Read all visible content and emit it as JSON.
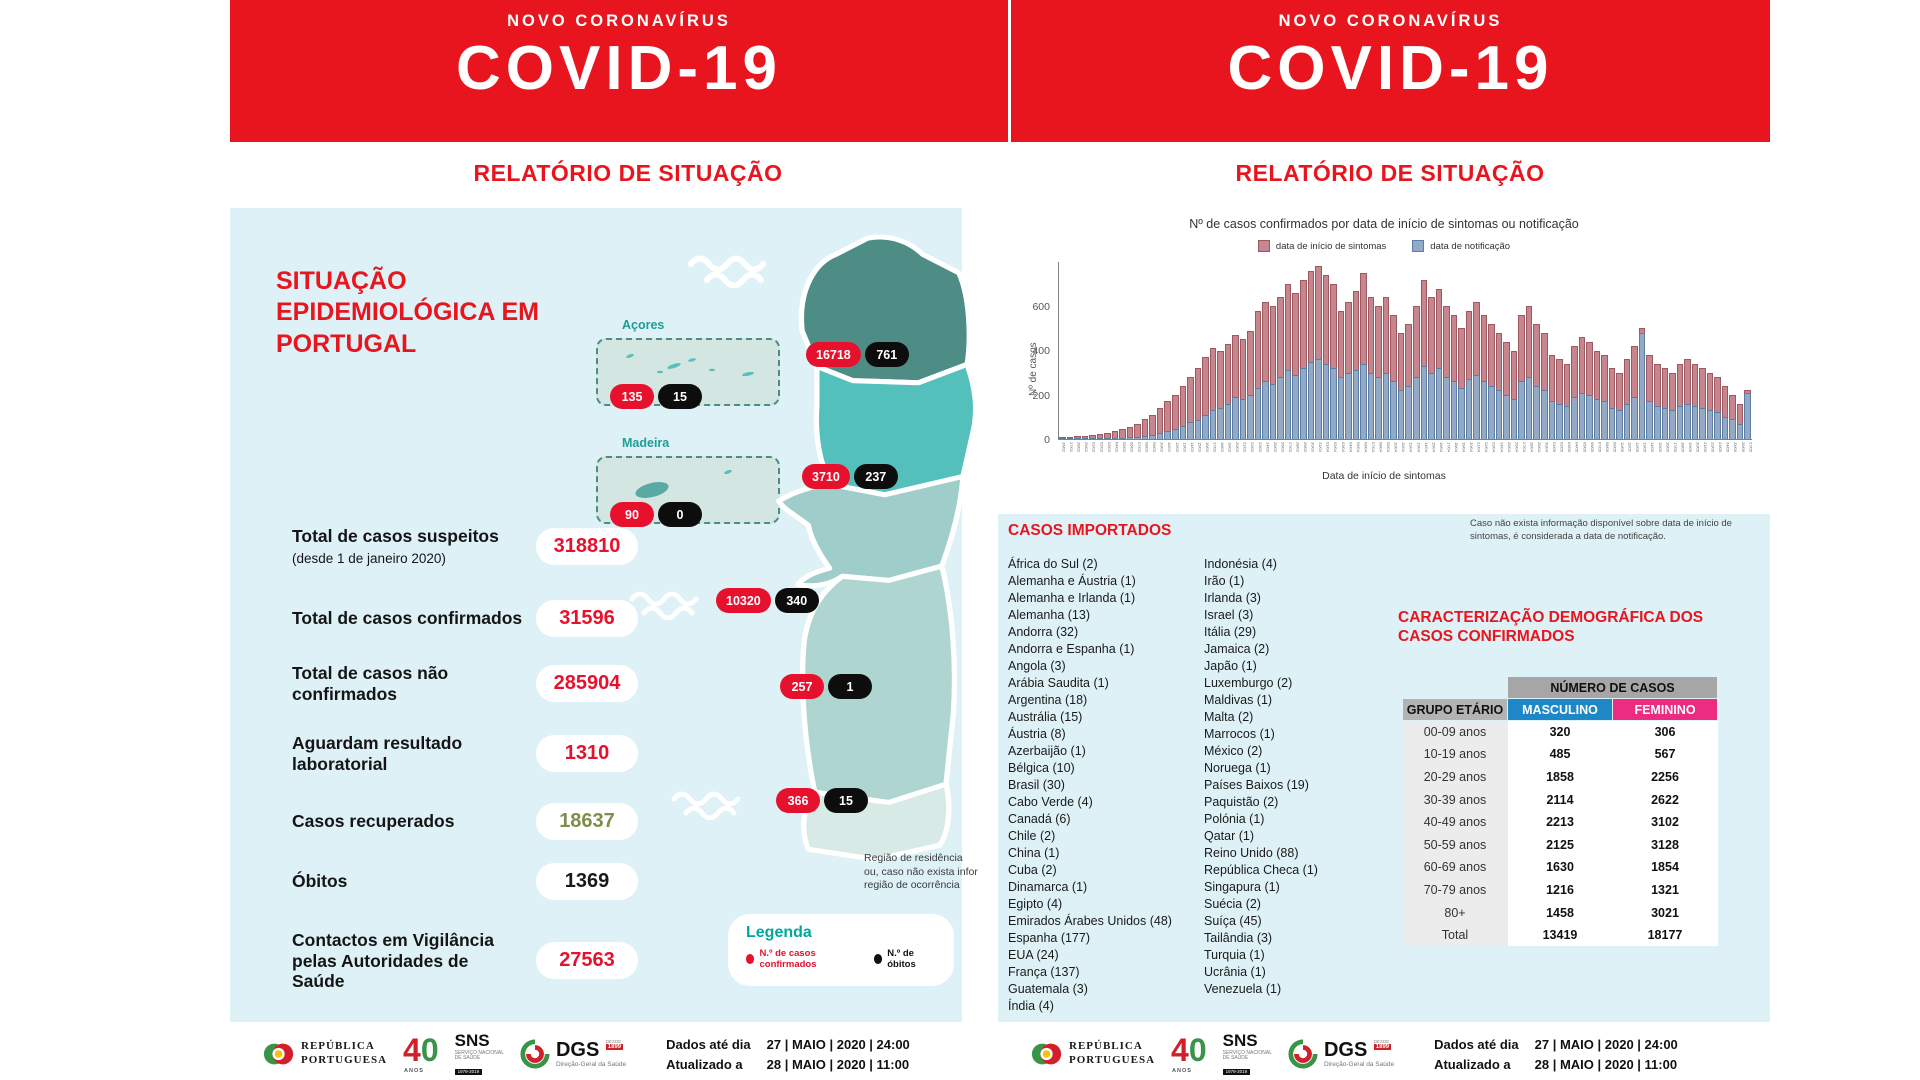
{
  "banner": {
    "kicker": "NOVO CORONAVÍRUS",
    "title": "COVID-19"
  },
  "report_heading": "RELATÓRIO DE SITUAÇÃO",
  "colors": {
    "accent_red": "#e8151e",
    "panel_blue": "#def1f7",
    "pill_red": "#e8112d",
    "pill_black": "#0d0d0d",
    "legend_teal": "#00a79d",
    "masculino_blue": "#1e87c8",
    "feminino_pink": "#ec2c80",
    "bar_sintomas": "#c9858d",
    "bar_notificacao": "#92a9c7",
    "map_norte": "#4e8d86",
    "map_centro": "#54c0bb",
    "map_lvt": "#9fcdc9",
    "map_alentejo": "#aed5d0",
    "map_algarve": "#d8eae6",
    "recovered_olive": "#7d8f4a"
  },
  "left": {
    "situation_title": "SITUAÇÃO EPIDEMIOLÓGICA EM PORTUGAL",
    "stats": [
      {
        "label": "Total de casos suspeitos",
        "suffix": "(desde 1 de janeiro 2020)",
        "value": "318810"
      },
      {
        "label": "Total de casos confirmados",
        "value": "31596"
      },
      {
        "label": "Total de casos não confirmados",
        "value": "285904"
      },
      {
        "label": "Aguardam resultado laboratorial",
        "value": "1310"
      },
      {
        "label": "Casos recuperados",
        "value": "18637"
      },
      {
        "label": "Óbitos",
        "value": "1369"
      },
      {
        "label": "Contactos em Vigilância pelas Autoridades de Saúde",
        "value": "27563"
      }
    ],
    "islands": [
      {
        "name": "Açores",
        "confirmed": "135",
        "deaths": "15"
      },
      {
        "name": "Madeira",
        "confirmed": "90",
        "deaths": "0"
      }
    ],
    "regions": {
      "norte": {
        "confirmed": "16718",
        "deaths": "761"
      },
      "centro": {
        "confirmed": "3710",
        "deaths": "237"
      },
      "lvt": {
        "confirmed": "10320",
        "deaths": "340"
      },
      "alentejo": {
        "confirmed": "257",
        "deaths": "1"
      },
      "algarve": {
        "confirmed": "366",
        "deaths": "15"
      }
    },
    "map_note": [
      "Região de residência",
      "ou, caso não exista infor",
      "região de ocorrência"
    ],
    "legend": {
      "title": "Legenda",
      "confirmed": "N.º de casos confirmados",
      "deaths": "N.º de óbitos"
    }
  },
  "right": {
    "imported": {
      "title": "CASOS IMPORTADOS",
      "col1": [
        "África do Sul (2)",
        "Alemanha e Áustria (1)",
        "Alemanha e Irlanda (1)",
        "Alemanha (13)",
        "Andorra (32)",
        "Andorra e Espanha (1)",
        "Angola (3)",
        "Arábia Saudita (1)",
        "Argentina (18)",
        "Austrália (15)",
        "Áustria (8)",
        "Azerbaijão (1)",
        "Bélgica (10)",
        "Brasil (30)",
        "Cabo Verde (4)",
        "Canadá (6)",
        "Chile (2)",
        "China (1)",
        "Cuba (2)",
        "Dinamarca (1)",
        "Egipto (4)",
        "Emirados Árabes Unidos (48)",
        "Espanha (177)",
        "EUA (24)",
        "França (137)",
        "Guatemala (3)",
        "Índia (4)"
      ],
      "col2": [
        "Indonésia (4)",
        "Irão (1)",
        "Irlanda (3)",
        "Israel (3)",
        "Itália (29)",
        "Jamaica (2)",
        "Japão (1)",
        "Luxemburgo (2)",
        "Maldivas (1)",
        "Malta (2)",
        "Marrocos (1)",
        "México (2)",
        "Noruega (1)",
        "Países Baixos (19)",
        "Paquistão (2)",
        "Polónia (1)",
        "Qatar (1)",
        "Reino Unido (88)",
        "República Checa (1)",
        "Singapura (1)",
        "Suécia (2)",
        "Suíça (45)",
        "Tailândia (3)",
        "Turquia (1)",
        "Ucrânia (1)",
        "Venezuela (1)"
      ]
    },
    "demographics": {
      "title": "CARACTERIZAÇÃO DEMOGRÁFICA DOS CASOS CONFIRMADOS",
      "header_group": "NÚMERO DE CASOS",
      "col_headers": [
        "GRUPO ETÁRIO",
        "MASCULINO",
        "FEMININO"
      ],
      "rows": [
        [
          "00-09 anos",
          "320",
          "306"
        ],
        [
          "10-19 anos",
          "485",
          "567"
        ],
        [
          "20-29 anos",
          "1858",
          "2256"
        ],
        [
          "30-39 anos",
          "2114",
          "2622"
        ],
        [
          "40-49 anos",
          "2213",
          "3102"
        ],
        [
          "50-59 anos",
          "2125",
          "3128"
        ],
        [
          "60-69 anos",
          "1630",
          "1854"
        ],
        [
          "70-79 anos",
          "1216",
          "1321"
        ],
        [
          "80+",
          "1458",
          "3021"
        ],
        [
          "Total",
          "13419",
          "18177"
        ]
      ]
    }
  },
  "chart_data": {
    "type": "bar",
    "title": "Nº de casos confirmados por data de início de sintomas ou notificação",
    "ylabel": "Nº de casos",
    "xlabel": "Data de início de sintomas",
    "ymax": 800,
    "yticks": [
      0,
      200,
      400,
      600
    ],
    "grid": false,
    "legend_position": "top",
    "legend": [
      "data de início de sintomas",
      "data de notificação"
    ],
    "note": "Caso não exista informação disponível sobre data de início de sintomas, é considerada a data de notificação.",
    "x": [
      "26/02",
      "27/02",
      "28/02",
      "29/02",
      "01/03",
      "02/03",
      "03/03",
      "04/03",
      "05/03",
      "06/03",
      "07/03",
      "08/03",
      "09/03",
      "10/03",
      "11/03",
      "12/03",
      "13/03",
      "14/03",
      "15/03",
      "16/03",
      "17/03",
      "18/03",
      "19/03",
      "20/03",
      "21/03",
      "22/03",
      "23/03",
      "24/03",
      "25/03",
      "26/03",
      "27/03",
      "28/03",
      "29/03",
      "30/03",
      "31/03",
      "01/04",
      "02/04",
      "03/04",
      "04/04",
      "05/04",
      "06/04",
      "07/04",
      "08/04",
      "09/04",
      "10/04",
      "11/04",
      "12/04",
      "13/04",
      "14/04",
      "15/04",
      "16/04",
      "17/04",
      "18/04",
      "19/04",
      "20/04",
      "21/04",
      "22/04",
      "23/04",
      "24/04",
      "25/04",
      "26/04",
      "27/04",
      "28/04",
      "29/04",
      "30/04",
      "01/05",
      "02/05",
      "03/05",
      "04/05",
      "05/05",
      "06/05",
      "07/05",
      "08/05",
      "09/05",
      "10/05",
      "11/05",
      "12/05",
      "13/05",
      "14/05",
      "15/05",
      "16/05",
      "17/05",
      "18/05",
      "19/05",
      "20/05",
      "21/05",
      "22/05",
      "23/05",
      "24/05",
      "25/05",
      "26/05",
      "27/05"
    ],
    "series": [
      {
        "name": "data de início de sintomas",
        "color": "#c9858d",
        "values": [
          8,
          10,
          12,
          15,
          18,
          22,
          28,
          35,
          45,
          55,
          70,
          90,
          110,
          140,
          170,
          200,
          240,
          280,
          320,
          370,
          410,
          400,
          430,
          470,
          450,
          490,
          580,
          620,
          600,
          640,
          700,
          660,
          720,
          760,
          780,
          740,
          700,
          580,
          620,
          670,
          750,
          640,
          600,
          640,
          560,
          480,
          520,
          600,
          720,
          640,
          680,
          600,
          560,
          500,
          580,
          620,
          560,
          520,
          480,
          440,
          400,
          560,
          600,
          520,
          480,
          380,
          360,
          340,
          420,
          460,
          440,
          400,
          380,
          320,
          300,
          360,
          420,
          500,
          380,
          340,
          320,
          300,
          340,
          360,
          340,
          320,
          300,
          280,
          240,
          200,
          160,
          220
        ]
      },
      {
        "name": "data de notificação",
        "color": "#92a9c7",
        "values": [
          0,
          0,
          1,
          1,
          2,
          2,
          4,
          5,
          6,
          8,
          10,
          14,
          20,
          26,
          34,
          44,
          60,
          76,
          86,
          110,
          130,
          140,
          160,
          190,
          180,
          200,
          230,
          260,
          250,
          280,
          310,
          290,
          320,
          350,
          360,
          340,
          320,
          280,
          300,
          310,
          340,
          300,
          280,
          300,
          260,
          220,
          240,
          280,
          330,
          300,
          320,
          280,
          260,
          230,
          270,
          290,
          260,
          240,
          220,
          200,
          180,
          260,
          280,
          240,
          220,
          170,
          160,
          150,
          190,
          210,
          200,
          180,
          170,
          140,
          130,
          160,
          190,
          480,
          170,
          150,
          140,
          130,
          150,
          160,
          150,
          140,
          130,
          120,
          100,
          90,
          70,
          210
        ]
      }
    ]
  },
  "footer": {
    "republica": {
      "line1": "REPÚBLICA",
      "line2": "PORTUGUESA"
    },
    "anos": {
      "number4": "4",
      "number0": "0",
      "label": "ANOS"
    },
    "sns": {
      "acronym": "SNS",
      "sub1": "SERVIÇO NACIONAL",
      "sub2": "DE SAÚDE",
      "badge": "1979-2019"
    },
    "dgs": {
      "acronym": "DGS",
      "since1": "DESDE",
      "since2": "1899",
      "sub": "Direção-Geral da Saúde"
    },
    "dates": [
      {
        "label": "Dados até dia",
        "value": "27 | MAIO | 2020 | 24:00"
      },
      {
        "label": "Atualizado a",
        "value": "28 | MAIO | 2020 | 11:00"
      }
    ]
  }
}
